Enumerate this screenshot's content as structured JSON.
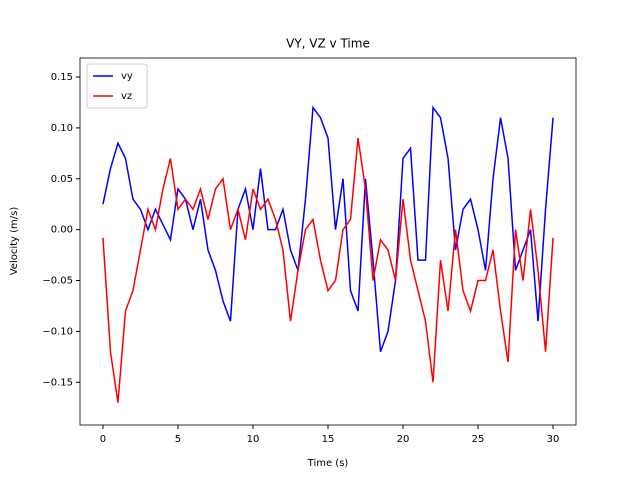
{
  "chart_data": {
    "type": "line",
    "title": "VY, VZ v Time",
    "xlabel": "Time (s)",
    "ylabel": "Velocity (m/s)",
    "x": [
      0,
      0.5,
      1,
      1.5,
      2,
      2.5,
      3,
      3.5,
      4,
      4.5,
      5,
      5.5,
      6,
      6.5,
      7,
      7.5,
      8,
      8.5,
      9,
      9.5,
      10,
      10.5,
      11,
      11.5,
      12,
      12.5,
      13,
      13.5,
      14,
      14.5,
      15,
      15.5,
      16,
      16.5,
      17,
      17.5,
      18,
      18.5,
      19,
      19.5,
      20,
      20.5,
      21,
      21.5,
      22,
      22.5,
      23,
      23.5,
      24,
      24.5,
      25,
      25.5,
      26,
      26.5,
      27,
      27.5,
      28,
      28.5,
      29,
      29.5,
      30
    ],
    "series": [
      {
        "name": "vy",
        "color": "#0000ff",
        "values": [
          0.025,
          0.06,
          0.085,
          0.07,
          0.03,
          0.02,
          0.0,
          0.02,
          0.005,
          -0.01,
          0.04,
          0.03,
          0.0,
          0.03,
          -0.02,
          -0.04,
          -0.07,
          -0.09,
          0.02,
          0.04,
          0.0,
          0.06,
          0.0,
          0.0,
          0.02,
          -0.02,
          -0.04,
          0.03,
          0.12,
          0.11,
          0.09,
          0.0,
          0.05,
          -0.06,
          -0.08,
          0.05,
          -0.03,
          -0.12,
          -0.1,
          -0.05,
          0.07,
          0.08,
          -0.03,
          -0.03,
          0.12,
          0.11,
          0.07,
          -0.02,
          0.02,
          0.03,
          0.0,
          -0.04,
          0.05,
          0.11,
          0.07,
          -0.04,
          -0.02,
          0.0,
          -0.09,
          0.02,
          0.11
        ]
      },
      {
        "name": "vz",
        "color": "#ff0000",
        "values": [
          -0.008,
          -0.12,
          -0.17,
          -0.08,
          -0.06,
          -0.02,
          0.02,
          0.0,
          0.04,
          0.07,
          0.02,
          0.03,
          0.02,
          0.04,
          0.01,
          0.04,
          0.05,
          0.0,
          0.02,
          -0.01,
          0.04,
          0.02,
          0.03,
          0.01,
          -0.02,
          -0.09,
          -0.04,
          0.0,
          0.01,
          -0.03,
          -0.06,
          -0.05,
          0.0,
          0.01,
          0.09,
          0.04,
          -0.05,
          -0.01,
          -0.02,
          -0.05,
          0.03,
          -0.03,
          -0.06,
          -0.09,
          -0.15,
          -0.03,
          -0.08,
          0.0,
          -0.06,
          -0.08,
          -0.05,
          -0.05,
          -0.02,
          -0.08,
          -0.13,
          0.0,
          -0.05,
          0.02,
          -0.04,
          -0.12,
          -0.008
        ]
      }
    ],
    "xlim": [
      -1.53,
      31.53
    ],
    "ylim": [
      -0.192,
      0.1687
    ],
    "xticks": [
      0,
      5,
      10,
      15,
      20,
      25,
      30
    ],
    "yticks": [
      {
        "value": -0.15,
        "label": "−0.15"
      },
      {
        "value": -0.1,
        "label": "−0.10"
      },
      {
        "value": -0.05,
        "label": "−0.05"
      },
      {
        "value": 0,
        "label": "0.00"
      },
      0.05,
      {
        "value": 0.1,
        "label": "0.10"
      },
      0.15
    ],
    "legend": "upper left"
  }
}
